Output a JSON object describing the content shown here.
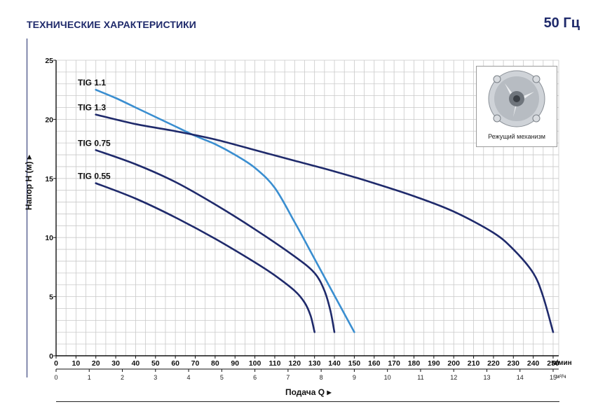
{
  "header": {
    "title": "ТЕХНИЧЕСКИЕ ХАРАКТЕРИСТИКИ",
    "frequency": "50 Гц"
  },
  "inset": {
    "caption": "Режущий механизм"
  },
  "chart_data": {
    "type": "line",
    "title": "",
    "ylabel": "Напор H (м)",
    "xlabel": "Подача Q",
    "x_unit_primary": "л/мин",
    "x_unit_secondary": "м³/ч",
    "xlim": [
      0,
      250
    ],
    "ylim": [
      0,
      25
    ],
    "x_ticks": [
      0,
      10,
      20,
      30,
      40,
      50,
      60,
      70,
      80,
      90,
      100,
      110,
      120,
      130,
      140,
      150,
      160,
      170,
      180,
      190,
      200,
      210,
      220,
      230,
      240,
      250
    ],
    "x_ticks_secondary": [
      0,
      1,
      2,
      3,
      4,
      5,
      6,
      7,
      8,
      9,
      10,
      11,
      12,
      13,
      14,
      15
    ],
    "y_ticks": [
      0,
      5,
      10,
      15,
      20,
      25
    ],
    "grid": true,
    "series": [
      {
        "name": "TIG 1.1",
        "color": "#3a8ed0",
        "x": [
          20,
          30,
          40,
          50,
          60,
          70,
          80,
          90,
          100,
          110,
          120,
          130,
          140,
          150
        ],
        "y": [
          22.5,
          21.8,
          21.0,
          20.2,
          19.4,
          18.6,
          17.9,
          17.0,
          15.9,
          14.2,
          11.3,
          8.2,
          5.1,
          2.0
        ]
      },
      {
        "name": "TIG 1.3",
        "color": "#1f2a6b",
        "x": [
          20,
          40,
          60,
          80,
          100,
          120,
          140,
          160,
          180,
          200,
          220,
          230,
          240,
          245,
          250
        ],
        "y": [
          20.4,
          19.6,
          19.0,
          18.3,
          17.4,
          16.5,
          15.6,
          14.6,
          13.5,
          12.2,
          10.4,
          9.0,
          7.0,
          5.0,
          2.0
        ]
      },
      {
        "name": "TIG 0.75",
        "color": "#1f2a6b",
        "x": [
          20,
          40,
          60,
          80,
          100,
          120,
          130,
          135,
          138,
          140
        ],
        "y": [
          17.4,
          16.2,
          14.7,
          12.8,
          10.7,
          8.4,
          7.0,
          5.5,
          3.8,
          2.0
        ]
      },
      {
        "name": "TIG 0.55",
        "color": "#1f2a6b",
        "x": [
          20,
          40,
          60,
          80,
          100,
          110,
          120,
          125,
          128,
          130
        ],
        "y": [
          14.6,
          13.3,
          11.7,
          9.9,
          7.9,
          6.8,
          5.5,
          4.5,
          3.4,
          2.0
        ]
      }
    ]
  }
}
